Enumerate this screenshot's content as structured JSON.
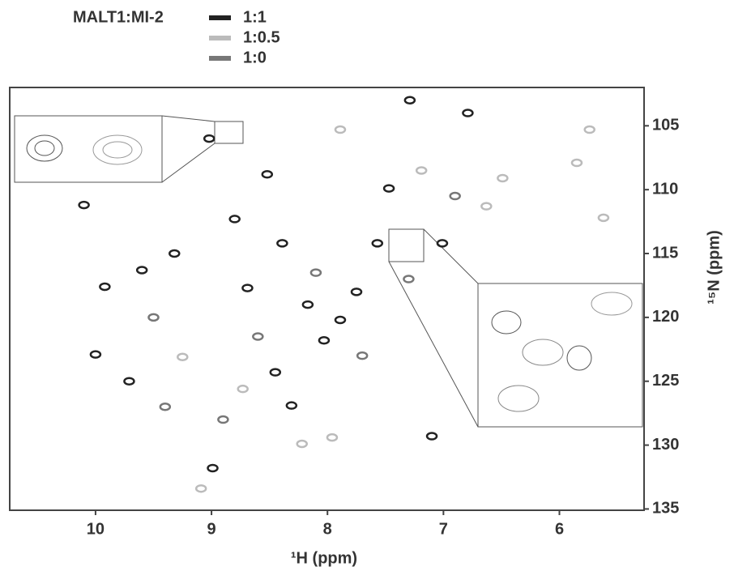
{
  "chart_data": {
    "type": "scatter",
    "legend_title": "MALT1:MI-2",
    "x_label": "¹H (ppm)",
    "y_label": "¹⁵N (ppm)",
    "xlim": [
      10.74,
      5.27
    ],
    "ylim": [
      102,
      135.1
    ],
    "xticks": [
      10,
      9,
      8,
      7,
      6
    ],
    "yticks": [
      105,
      110,
      115,
      120,
      125,
      130,
      135
    ],
    "series": [
      {
        "name": "1:1",
        "color": "#222222",
        "x": [
          10.1,
          9.92,
          10.0,
          9.71,
          9.6,
          9.32,
          9.02,
          8.99,
          8.8,
          8.69,
          8.52,
          8.39,
          8.17,
          8.03,
          7.89,
          7.75,
          7.57,
          7.47,
          7.29,
          7.01,
          6.79,
          7.1,
          8.45,
          8.31
        ],
        "values": [
          111.2,
          117.6,
          122.9,
          125.0,
          116.3,
          115.0,
          106.0,
          131.8,
          112.3,
          117.7,
          108.8,
          114.2,
          119.0,
          121.8,
          120.2,
          118.0,
          114.2,
          109.9,
          103.0,
          114.2,
          104.0,
          129.3,
          124.3,
          126.9
        ]
      },
      {
        "name": "1:0.5",
        "color": "#bbbbbb",
        "x": [
          9.09,
          9.25,
          8.22,
          7.96,
          7.89,
          7.19,
          6.63,
          6.49,
          5.85,
          5.62,
          5.74,
          8.73
        ],
        "values": [
          133.4,
          123.1,
          129.9,
          129.4,
          105.3,
          108.5,
          111.3,
          109.1,
          107.9,
          112.2,
          105.3,
          125.6
        ]
      },
      {
        "name": "1:0",
        "color": "#777777",
        "x": [
          9.5,
          8.6,
          8.1,
          7.7,
          7.3,
          6.9,
          8.9,
          9.4
        ],
        "values": [
          120.0,
          121.5,
          116.5,
          123.0,
          117.0,
          110.5,
          128.0,
          127.0
        ]
      }
    ]
  }
}
